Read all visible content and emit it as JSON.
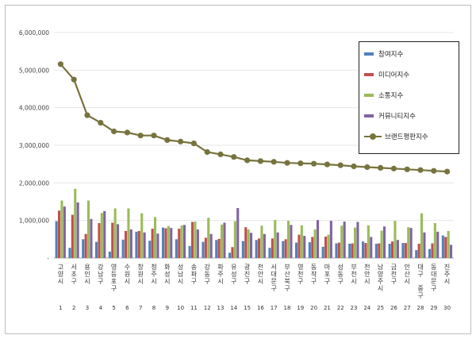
{
  "chart_data": {
    "type": "bar",
    "ylim": [
      0,
      6000000
    ],
    "yticks": [
      "6,000,000",
      "5,000,000",
      "4,000,000",
      "3,000,000",
      "2,000,000",
      "1,000,000",
      "-"
    ],
    "categories": [
      "고양시",
      "서초구",
      "용인시",
      "강남구",
      "영등포구",
      "수원시",
      "창원시",
      "청주시",
      "화성시",
      "성남시",
      "송파구",
      "강동구",
      "파주시",
      "유성구",
      "광진구",
      "천안시",
      "서대문구",
      "부산북구",
      "영천구",
      "동작구",
      "마포구",
      "성동구",
      "부천시",
      "천안시",
      "남양주시",
      "금천구",
      "안산시",
      "대구 중구",
      "동대문구",
      "진주시"
    ],
    "ranks": [
      "1",
      "2",
      "3",
      "4",
      "5",
      "6",
      "7",
      "8",
      "9",
      "10",
      "11",
      "12",
      "13",
      "14",
      "15",
      "16",
      "17",
      "18",
      "19",
      "20",
      "21",
      "22",
      "23",
      "24",
      "25",
      "26",
      "27",
      "28",
      "29",
      "30"
    ],
    "series": [
      {
        "name": "참여지수",
        "color": "#4f81bd",
        "values": [
          980000,
          270000,
          500000,
          430000,
          170000,
          490000,
          700000,
          460000,
          810000,
          500000,
          320000,
          430000,
          480000,
          140000,
          450000,
          480000,
          270000,
          450000,
          410000,
          420000,
          300000,
          390000,
          380000,
          440000,
          380000,
          380000,
          400000,
          210000,
          240000,
          600000
        ]
      },
      {
        "name": "미디어지수",
        "color": "#c0504d",
        "values": [
          1260000,
          1150000,
          640000,
          930000,
          940000,
          720000,
          720000,
          780000,
          790000,
          780000,
          960000,
          540000,
          510000,
          290000,
          820000,
          520000,
          520000,
          500000,
          620000,
          560000,
          570000,
          410000,
          390000,
          400000,
          390000,
          440000,
          400000,
          380000,
          390000,
          560000
        ]
      },
      {
        "name": "소통지수",
        "color": "#9bbb59",
        "values": [
          1530000,
          1840000,
          1530000,
          1200000,
          1320000,
          1320000,
          1190000,
          1090000,
          850000,
          870000,
          970000,
          1070000,
          890000,
          980000,
          760000,
          860000,
          1010000,
          990000,
          870000,
          760000,
          620000,
          860000,
          810000,
          870000,
          730000,
          990000,
          820000,
          1190000,
          930000,
          720000
        ]
      },
      {
        "name": "커뮤니티지수",
        "color": "#8064a2",
        "values": [
          1370000,
          1480000,
          1040000,
          1250000,
          900000,
          760000,
          680000,
          650000,
          800000,
          880000,
          760000,
          640000,
          940000,
          1330000,
          670000,
          640000,
          680000,
          880000,
          590000,
          1010000,
          990000,
          970000,
          960000,
          560000,
          840000,
          480000,
          800000,
          680000,
          700000,
          350000
        ]
      }
    ],
    "line": {
      "name": "브랜드평판지수",
      "color": "#77733d",
      "values": [
        5160000,
        4750000,
        3800000,
        3600000,
        3370000,
        3340000,
        3260000,
        3260000,
        3140000,
        3100000,
        3050000,
        2820000,
        2760000,
        2690000,
        2600000,
        2580000,
        2560000,
        2530000,
        2520000,
        2510000,
        2490000,
        2470000,
        2440000,
        2420000,
        2400000,
        2380000,
        2360000,
        2340000,
        2320000,
        2300000
      ]
    }
  }
}
